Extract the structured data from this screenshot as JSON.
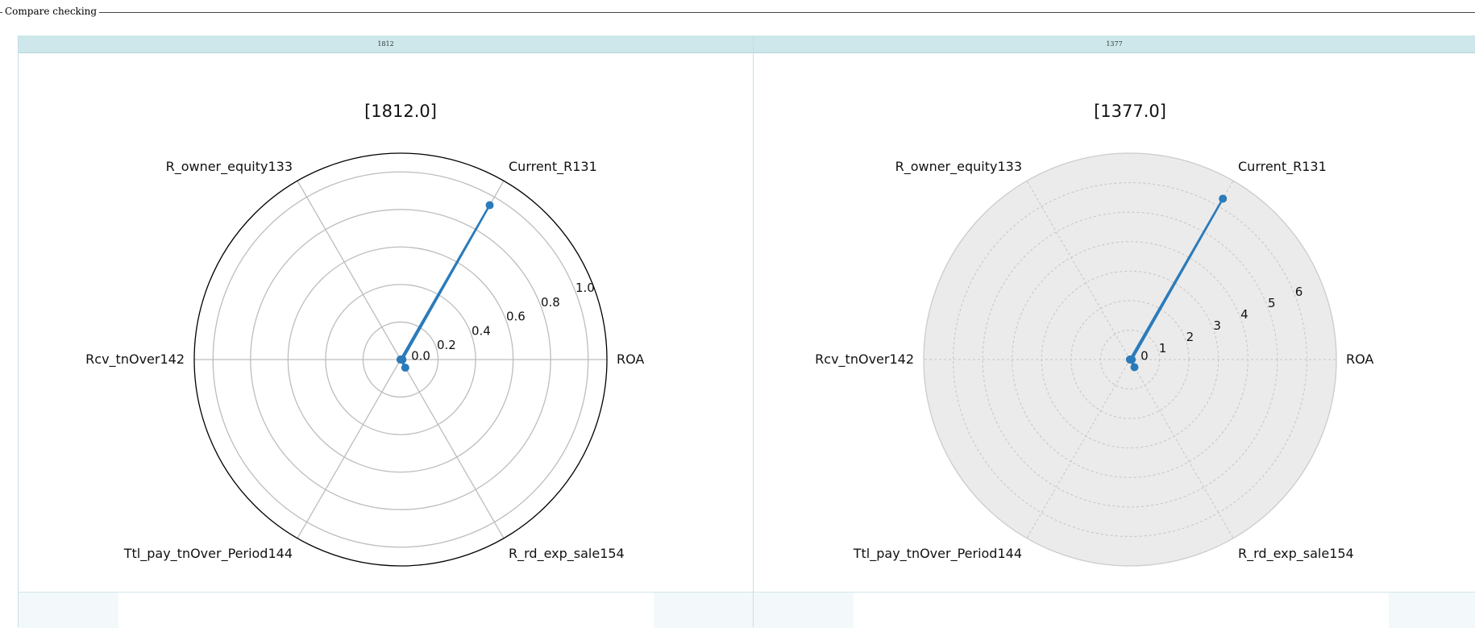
{
  "section": {
    "legend": "Compare checking"
  },
  "panels": [
    {
      "tab_label": "1812"
    },
    {
      "tab_label": "1377"
    }
  ],
  "chart_data": [
    {
      "type": "radar",
      "title": "[1812.0]",
      "categories": [
        "ROA",
        "Current_R131",
        "R_owner_equity133",
        "Rcv_tnOver142",
        "Ttl_pay_tnOver_Period144",
        "R_rd_exp_sale154"
      ],
      "values": [
        0.01,
        0.95,
        0.0,
        0.0,
        0.0,
        0.05
      ],
      "rlim": [
        0,
        1.1
      ],
      "rticks": [
        "0.0",
        "0.2",
        "0.4",
        "0.6",
        "0.8",
        "1.0"
      ],
      "grid": "solid",
      "series_color": "#2b7bba"
    },
    {
      "type": "radar",
      "title": "[1377.0]",
      "categories": [
        "ROA",
        "Current_R131",
        "R_owner_equity133",
        "Rcv_tnOver142",
        "Ttl_pay_tnOver_Period144",
        "R_rd_exp_sale154"
      ],
      "values": [
        0.06,
        6.3,
        0.0,
        0.0,
        0.0,
        0.3
      ],
      "rlim": [
        0,
        7
      ],
      "rticks": [
        "0",
        "1",
        "2",
        "3",
        "4",
        "5",
        "6"
      ],
      "grid": "dashed",
      "series_color": "#2b7bba"
    }
  ]
}
